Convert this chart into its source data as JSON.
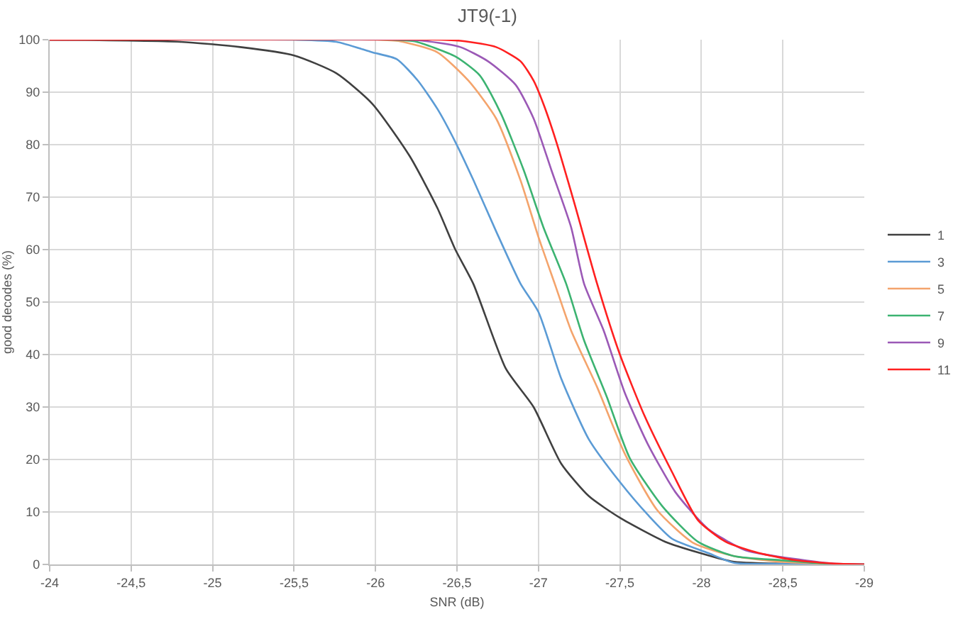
{
  "chart_data": {
    "type": "line",
    "title": "JT9(-1)",
    "xlabel": "SNR (dB)",
    "ylabel": "good decodes (%)",
    "xlim": [
      -24,
      -29
    ],
    "xticks": [
      -24,
      {
        "value": -24.5,
        "label": "-24,5"
      },
      -25,
      {
        "value": -25.5,
        "label": "-25,5"
      },
      -26,
      {
        "value": -26.5,
        "label": "-26,5"
      },
      -27,
      {
        "value": -27.5,
        "label": "-27,5"
      },
      -28,
      {
        "value": -28.5,
        "label": "-28,5"
      },
      -29
    ],
    "ylim": [
      0,
      100
    ],
    "yticks": [
      0,
      10,
      20,
      30,
      40,
      50,
      60,
      70,
      80,
      90,
      100
    ],
    "grid": true,
    "legend": "right",
    "marker": "none",
    "line_style": "solid",
    "series": [
      {
        "name": "1",
        "color": "#404040",
        "x": [
          -24,
          -24.8,
          -25.17,
          -25.5,
          -25.76,
          -25.98,
          -26.21,
          -26.38,
          -26.49,
          -26.6,
          -26.8,
          -26.97,
          -27.14,
          -27.31,
          -27.5,
          -27.78,
          -27.99,
          -28.2,
          -28.6,
          -29
        ],
        "values": [
          100,
          99.6,
          98.6,
          97,
          93.6,
          87.8,
          77.8,
          67.9,
          60,
          53.5,
          37.3,
          30,
          19.2,
          13,
          8.9,
          4.3,
          2.2,
          0.5,
          0.1,
          0
        ]
      },
      {
        "name": "3",
        "color": "#5b9bd5",
        "x": [
          -24,
          -25.5,
          -25.76,
          -25.98,
          -26.13,
          -26.26,
          -26.38,
          -26.49,
          -26.6,
          -26.74,
          -26.89,
          -27,
          -27.14,
          -27.31,
          -27.5,
          -27.67,
          -27.82,
          -28.04,
          -28.2,
          -28.6,
          -29
        ],
        "values": [
          100,
          100,
          99.6,
          97.6,
          96.3,
          92.2,
          86.8,
          80.5,
          73.3,
          63.5,
          53.5,
          48.1,
          35.4,
          23.8,
          15.7,
          9.5,
          4.9,
          2.2,
          0.3,
          0.1,
          0
        ]
      },
      {
        "name": "5",
        "color": "#f4a46c",
        "x": [
          -24,
          -26,
          -26.15,
          -26.38,
          -26.57,
          -26.74,
          -26.89,
          -27,
          -27.1,
          -27.2,
          -27.36,
          -27.53,
          -27.73,
          -27.95,
          -28.2,
          -28.49,
          -28.8,
          -29
        ],
        "values": [
          100,
          100,
          99.7,
          97.6,
          92.2,
          85,
          73.2,
          62.4,
          53.5,
          44.6,
          33.8,
          21.1,
          10.3,
          4.1,
          1.6,
          0.5,
          0.1,
          0
        ]
      },
      {
        "name": "7",
        "color": "#3cb371",
        "x": [
          -24,
          -26.1,
          -26.24,
          -26.49,
          -26.64,
          -26.77,
          -26.91,
          -27.03,
          -27.17,
          -27.28,
          -27.42,
          -27.56,
          -27.76,
          -27.98,
          -28.2,
          -28.49,
          -28.8,
          -29
        ],
        "values": [
          100,
          100,
          99.7,
          96.8,
          93.2,
          85.9,
          75.1,
          64.3,
          53.5,
          42.7,
          31.9,
          20.3,
          11.1,
          4.3,
          1.6,
          0.8,
          0.1,
          0
        ]
      },
      {
        "name": "9",
        "color": "#9b59b6",
        "x": [
          -24,
          -26.2,
          -26.32,
          -26.52,
          -26.69,
          -26.86,
          -26.97,
          -27.08,
          -27.2,
          -27.28,
          -27.4,
          -27.53,
          -27.67,
          -27.84,
          -28.04,
          -28.27,
          -28.49,
          -28.8,
          -29
        ],
        "values": [
          100,
          100,
          99.7,
          98.6,
          95.9,
          91.4,
          85,
          75.1,
          64.3,
          53.5,
          44.6,
          32.7,
          23,
          13.8,
          6.8,
          2.7,
          1.4,
          0.2,
          0
        ]
      },
      {
        "name": "11",
        "color": "#ff2020",
        "x": [
          -24,
          -26.4,
          -26.55,
          -26.74,
          -26.89,
          -26.97,
          -27.03,
          -27.11,
          -27.22,
          -27.36,
          -27.5,
          -27.65,
          -27.82,
          -27.98,
          -28.15,
          -28.35,
          -28.58,
          -28.8,
          -29
        ],
        "values": [
          100,
          100,
          99.7,
          98.6,
          95.9,
          92.2,
          87.8,
          80.5,
          68.9,
          53.5,
          40,
          28.4,
          17.6,
          8.4,
          4.3,
          2.2,
          0.8,
          0.2,
          0
        ]
      }
    ]
  }
}
